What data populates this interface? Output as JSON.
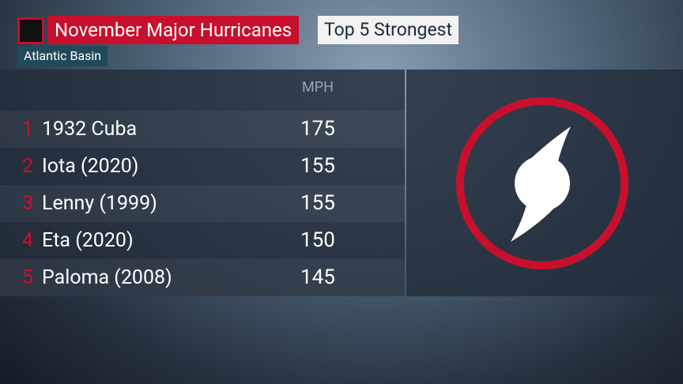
{
  "header": {
    "title": "November Major Hurricanes",
    "badge": "Top 5 Strongest",
    "subtitle": "Atlantic Basin"
  },
  "table": {
    "column_header": "MPH",
    "rows": [
      [
        "1",
        "1932 Cuba",
        175
      ],
      [
        "2",
        "Iota (2020)",
        155
      ],
      [
        "3",
        "Lenny (1999)",
        155
      ],
      [
        "4",
        "Eta (2020)",
        150
      ],
      [
        "5",
        "Paloma (2008)",
        145
      ]
    ]
  }
}
